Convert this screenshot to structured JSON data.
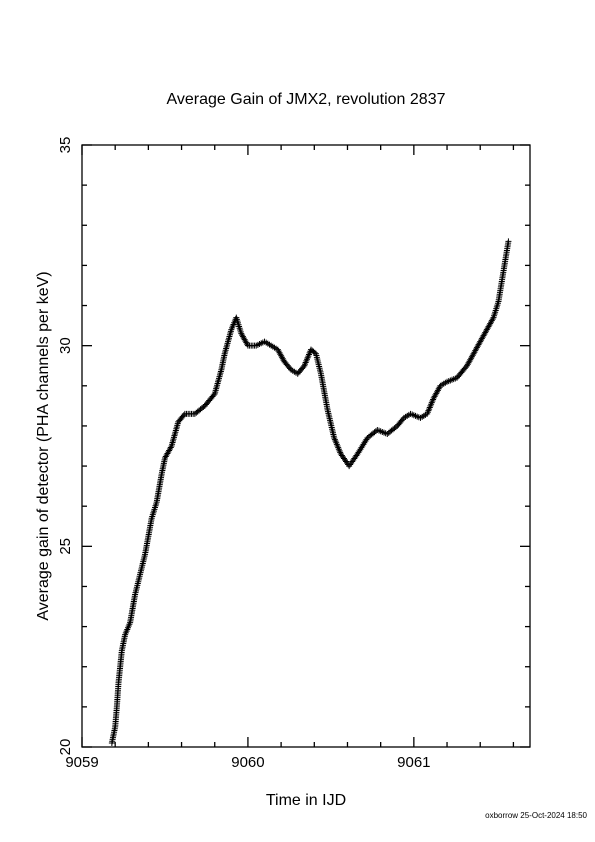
{
  "chart_data": {
    "type": "scatter",
    "title": "Average Gain of JMX2, revolution 2837",
    "xlabel": "Time in IJD",
    "ylabel": "Average gain of detector (PHA channels per keV)",
    "xlim": [
      9059,
      9061.7
    ],
    "ylim": [
      20,
      35
    ],
    "xticks": [
      9059,
      9060,
      9061
    ],
    "yticks": [
      20,
      25,
      30,
      35
    ],
    "grid": false,
    "legend": "none",
    "marker": "plus",
    "color": "#000000",
    "series": [
      {
        "points": [
          [
            9059.18,
            20.1
          ],
          [
            9059.2,
            20.5
          ],
          [
            9059.21,
            21.0
          ],
          [
            9059.22,
            21.6
          ],
          [
            9059.24,
            22.4
          ],
          [
            9059.26,
            22.8
          ],
          [
            9059.29,
            23.1
          ],
          [
            9059.32,
            23.8
          ],
          [
            9059.35,
            24.3
          ],
          [
            9059.38,
            24.8
          ],
          [
            9059.42,
            25.7
          ],
          [
            9059.45,
            26.1
          ],
          [
            9059.48,
            26.8
          ],
          [
            9059.5,
            27.2
          ],
          [
            9059.54,
            27.5
          ],
          [
            9059.58,
            28.1
          ],
          [
            9059.62,
            28.3
          ],
          [
            9059.68,
            28.3
          ],
          [
            9059.74,
            28.5
          ],
          [
            9059.8,
            28.8
          ],
          [
            9059.84,
            29.4
          ],
          [
            9059.86,
            29.8
          ],
          [
            9059.9,
            30.4
          ],
          [
            9059.93,
            30.7
          ],
          [
            9059.96,
            30.3
          ],
          [
            9060.0,
            30.0
          ],
          [
            9060.05,
            30.0
          ],
          [
            9060.1,
            30.1
          ],
          [
            9060.14,
            30.0
          ],
          [
            9060.18,
            29.9
          ],
          [
            9060.22,
            29.6
          ],
          [
            9060.26,
            29.4
          ],
          [
            9060.3,
            29.3
          ],
          [
            9060.34,
            29.5
          ],
          [
            9060.38,
            29.9
          ],
          [
            9060.41,
            29.8
          ],
          [
            9060.44,
            29.3
          ],
          [
            9060.48,
            28.4
          ],
          [
            9060.52,
            27.7
          ],
          [
            9060.56,
            27.3
          ],
          [
            9060.61,
            27.0
          ],
          [
            9060.66,
            27.3
          ],
          [
            9060.72,
            27.7
          ],
          [
            9060.78,
            27.9
          ],
          [
            9060.84,
            27.8
          ],
          [
            9060.9,
            28.0
          ],
          [
            9060.94,
            28.2
          ],
          [
            9060.98,
            28.3
          ],
          [
            9061.04,
            28.2
          ],
          [
            9061.08,
            28.3
          ],
          [
            9061.12,
            28.7
          ],
          [
            9061.16,
            29.0
          ],
          [
            9061.2,
            29.1
          ],
          [
            9061.26,
            29.2
          ],
          [
            9061.32,
            29.5
          ],
          [
            9061.36,
            29.8
          ],
          [
            9061.4,
            30.1
          ],
          [
            9061.44,
            30.4
          ],
          [
            9061.48,
            30.7
          ],
          [
            9061.51,
            31.1
          ],
          [
            9061.53,
            31.6
          ],
          [
            9061.55,
            32.1
          ],
          [
            9061.57,
            32.6
          ]
        ]
      }
    ]
  },
  "footer_text": "oxborrow 25-Oct-2024 18:50"
}
